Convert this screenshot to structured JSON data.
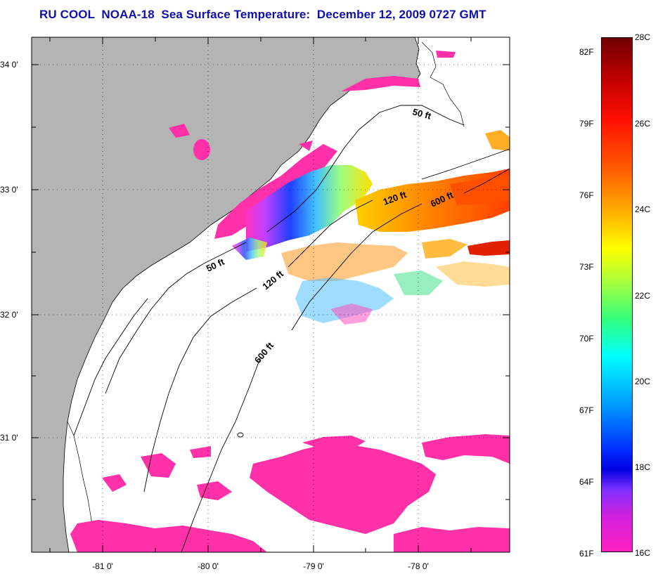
{
  "title": "RU COOL  NOAA-18  Sea Surface Temperature:  December 12, 2009 0727 GMT",
  "axes": {
    "lat_labels": [
      "34 0'",
      "33 0'",
      "32 0'",
      "31 0'"
    ],
    "lon_labels": [
      "-81 0'",
      "-80 0'",
      "-79 0'",
      "-78 0'"
    ]
  },
  "contours": {
    "label_50": "50 ft",
    "label_120": "120 ft",
    "label_600": "600 ft"
  },
  "colorbar": {
    "celsius": [
      "28C",
      "26C",
      "24C",
      "22C",
      "20C",
      "18C",
      "16C"
    ],
    "fahrenheit": [
      "82F",
      "79F",
      "76F",
      "73F",
      "70F",
      "67F",
      "64F",
      "61F"
    ]
  },
  "colors": {
    "title": "#1010a8",
    "land": "#b4b4b4",
    "cold_patch": "#ff30a8"
  }
}
